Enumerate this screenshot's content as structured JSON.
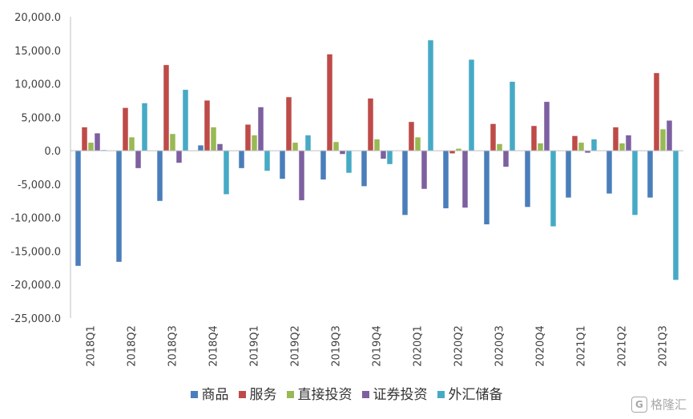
{
  "chart_data": {
    "type": "bar",
    "title": "",
    "xlabel": "",
    "ylabel": "",
    "ylim": [
      -25000,
      20000
    ],
    "yticks": [
      "20,000.0",
      "15,000.0",
      "10,000.0",
      "5,000.0",
      "0.0",
      "-5,000.0",
      "-10,000.0",
      "-15,000.0",
      "-20,000.0",
      "-25,000.0"
    ],
    "ytick_values": [
      20000,
      15000,
      10000,
      5000,
      0,
      -5000,
      -10000,
      -15000,
      -20000,
      -25000
    ],
    "grid": false,
    "legend_position": "bottom",
    "categories": [
      "2018Q1",
      "2018Q2",
      "2018Q3",
      "2018Q4",
      "2019Q1",
      "2019Q2",
      "2019Q3",
      "2019Q4",
      "2020Q1",
      "2020Q2",
      "2020Q3",
      "2020Q4",
      "2021Q1",
      "2021Q2",
      "2021Q3"
    ],
    "series": [
      {
        "name": "商品",
        "color": "#4a7ebb",
        "values": [
          -17200,
          -16600,
          -7500,
          800,
          -2600,
          -4200,
          -4300,
          -5300,
          -9600,
          -8600,
          -11000,
          -8400,
          -7000,
          -6400,
          -7000
        ]
      },
      {
        "name": "服务",
        "color": "#be4b48",
        "values": [
          3500,
          6400,
          12800,
          7500,
          3900,
          8000,
          14400,
          7800,
          4300,
          -400,
          4000,
          3700,
          2200,
          3500,
          11600
        ]
      },
      {
        "name": "直接投资",
        "color": "#98b954",
        "values": [
          1200,
          2000,
          2500,
          3500,
          2300,
          1200,
          1300,
          1700,
          2000,
          300,
          1000,
          1100,
          1200,
          1100,
          3200
        ]
      },
      {
        "name": "证券投资",
        "color": "#7d60a0",
        "values": [
          2600,
          -2600,
          -1800,
          1000,
          6500,
          -7400,
          -500,
          -1200,
          -5700,
          -8500,
          -2400,
          7300,
          -300,
          2300,
          4500
        ]
      },
      {
        "name": "外汇储备",
        "color": "#46aac5",
        "values": [
          100,
          7100,
          9100,
          -6500,
          -3000,
          2300,
          -3300,
          -2000,
          16500,
          13600,
          10300,
          -11300,
          1700,
          -9600,
          -19300
        ]
      }
    ]
  },
  "watermark": {
    "logo": "G",
    "text": "格隆汇"
  }
}
